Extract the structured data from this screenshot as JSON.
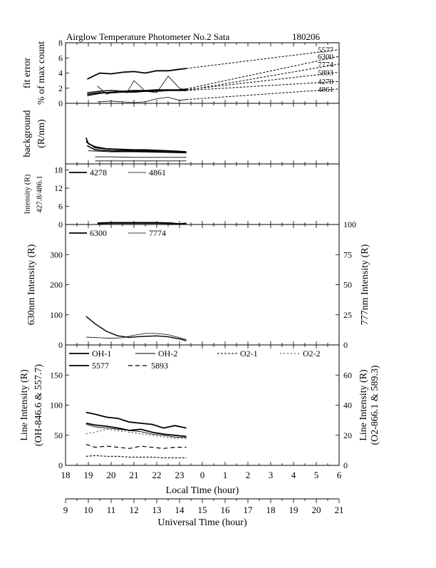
{
  "header": {
    "title": "Airglow Temperature Photometer No.2  Sata",
    "date": "180206"
  },
  "chart_data": [
    {
      "type": "line",
      "panel": "fit-error",
      "ylabel_lines": [
        "fit error",
        "% of max count"
      ],
      "ylim": [
        0,
        8
      ],
      "yticks": [
        0,
        2,
        4,
        6,
        8
      ],
      "xlim": [
        18,
        30
      ],
      "series": [
        {
          "name": "5577",
          "x": [
            18.95,
            19.5,
            20,
            20.5,
            21,
            21.5,
            22,
            22.5,
            23,
            23.3
          ],
          "y": [
            3.2,
            4.0,
            3.9,
            4.1,
            4.2,
            4.0,
            4.3,
            4.3,
            4.5,
            4.6
          ],
          "projection": {
            "x": [
              23.3,
              30
            ],
            "y": [
              4.6,
              7.1
            ]
          }
        },
        {
          "name": "6300",
          "x": [
            18.95,
            19.5,
            20,
            20.5,
            21,
            21.5,
            22,
            22.5,
            23,
            23.3
          ],
          "y": [
            1.4,
            1.6,
            1.7,
            1.6,
            1.7,
            1.7,
            1.8,
            1.8,
            1.8,
            1.9
          ],
          "projection": {
            "x": [
              23.3,
              30
            ],
            "y": [
              1.9,
              6.2
            ]
          }
        },
        {
          "name": "7774",
          "x": [
            19.4,
            19.8,
            20.2,
            20.7,
            21,
            21.5,
            22,
            22.5,
            23,
            23.3
          ],
          "y": [
            2.3,
            1.2,
            1.6,
            1.4,
            3.0,
            1.6,
            1.4,
            3.6,
            2.0,
            1.7
          ],
          "projection": {
            "x": [
              23.3,
              30
            ],
            "y": [
              1.7,
              5.2
            ]
          }
        },
        {
          "name": "5893",
          "x": [
            18.95,
            19.5,
            20,
            20.5,
            21,
            21.5,
            22,
            22.5,
            23,
            23.3
          ],
          "y": [
            1.0,
            1.3,
            1.5,
            1.5,
            1.6,
            1.6,
            1.7,
            1.7,
            1.8,
            1.8
          ],
          "projection": {
            "x": [
              23.3,
              30
            ],
            "y": [
              1.8,
              4.1
            ]
          }
        },
        {
          "name": "4278",
          "x": [
            18.95,
            19.5,
            20,
            20.5,
            21,
            21.5,
            22,
            22.5,
            23,
            23.3
          ],
          "y": [
            1.2,
            1.4,
            1.4,
            1.5,
            1.5,
            1.6,
            1.6,
            1.7,
            1.7,
            1.7
          ],
          "projection": {
            "x": [
              23.3,
              30
            ],
            "y": [
              1.7,
              2.9
            ]
          }
        },
        {
          "name": "4861",
          "x": [
            19.4,
            20,
            20.5,
            21,
            21.5,
            22,
            22.5,
            23,
            23.3
          ],
          "y": [
            0.2,
            0.3,
            0.2,
            0.1,
            0.2,
            0.6,
            0.8,
            0.4,
            0.5
          ],
          "projection": {
            "x": [
              23.3,
              30
            ],
            "y": [
              0.5,
              1.9
            ]
          }
        }
      ]
    },
    {
      "type": "line",
      "panel": "background",
      "ylabel_lines": [
        "background",
        "(R/nm)"
      ],
      "ylim": [
        0,
        60
      ],
      "xlim": [
        18,
        30
      ],
      "series": [
        {
          "x": [
            18.9,
            19.0,
            19.3,
            19.8,
            20.5,
            21,
            21.5,
            22,
            22.5,
            23,
            23.3
          ],
          "y": [
            26,
            20,
            17,
            15,
            14.5,
            14,
            14,
            13.5,
            13,
            12.5,
            12
          ]
        },
        {
          "x": [
            18.9,
            19.3,
            19.8,
            20.5,
            21,
            21.5,
            22,
            22.5,
            23,
            23.3
          ],
          "y": [
            22,
            16,
            15,
            14,
            13.5,
            13,
            13,
            12.5,
            12,
            11.5
          ]
        },
        {
          "x": [
            18.95,
            19.3,
            20,
            21,
            22,
            23,
            23.3
          ],
          "y": [
            18,
            14,
            13,
            12.5,
            12,
            11.5,
            11
          ]
        },
        {
          "x": [
            19.0,
            20,
            21,
            22,
            23,
            23.3
          ],
          "y": [
            13,
            12,
            12,
            11.5,
            11,
            11
          ]
        },
        {
          "x": [
            19.3,
            20,
            21,
            22,
            23,
            23.3
          ],
          "y": [
            7,
            7,
            6.5,
            6.5,
            6.5,
            6.5
          ]
        },
        {
          "x": [
            19.3,
            20,
            21,
            22,
            23,
            23.3
          ],
          "y": [
            3,
            3,
            3,
            3,
            3,
            3
          ]
        }
      ]
    },
    {
      "type": "line",
      "panel": "blue-lines",
      "ylabel_lines": [
        "Intensity (R)",
        "427.8/486.1"
      ],
      "ylim": [
        0,
        20
      ],
      "yticks": [
        0,
        6,
        12,
        18
      ],
      "xlim": [
        18,
        30
      ],
      "series": [
        {
          "name": "4278",
          "x": [
            19.4,
            20,
            21,
            22,
            22.6,
            23,
            23.3
          ],
          "y": [
            0.5,
            0.6,
            0.6,
            0.6,
            0.5,
            0.2,
            0.4
          ]
        },
        {
          "name": "4861",
          "x": [
            19.4,
            20,
            21,
            22,
            22.6,
            23,
            23.3
          ],
          "y": [
            0.2,
            0.3,
            0.3,
            0.3,
            0.2,
            0.0,
            0.1
          ]
        }
      ]
    },
    {
      "type": "line",
      "panel": "red-lines",
      "ylabel": "630nm Intensity (R)",
      "ylabel_right": "777nm Intensity (R)",
      "ylim": [
        0,
        400
      ],
      "yticks": [
        0,
        100,
        200,
        300
      ],
      "ylim_right": [
        0,
        100
      ],
      "yticks_right": [
        0,
        25,
        50,
        75,
        100
      ],
      "xlim": [
        18,
        30
      ],
      "series": [
        {
          "name": "6300",
          "axis": "left",
          "x": [
            18.9,
            19.3,
            19.8,
            20.3,
            20.8,
            21.3,
            22,
            22.5,
            23,
            23.3
          ],
          "y": [
            95,
            70,
            45,
            30,
            25,
            28,
            30,
            27,
            20,
            14
          ]
        },
        {
          "name": "7774",
          "axis": "right",
          "x": [
            18.9,
            19.5,
            20,
            20.5,
            21,
            21.5,
            22,
            22.5,
            23,
            23.3
          ],
          "y": [
            6.5,
            6.0,
            5.5,
            6.0,
            8.0,
            9.5,
            9.5,
            8.5,
            6.0,
            4.5
          ]
        }
      ]
    },
    {
      "type": "line",
      "panel": "line-intensity",
      "ylabel_lines": [
        "Line Intensity (R)",
        "(OH-846.6 & 557.7)"
      ],
      "ylabel_right_lines": [
        "Line Intensity (R)",
        "(O2-866.1 & 589.3)"
      ],
      "ylim": [
        0,
        200
      ],
      "yticks": [
        0,
        50,
        100,
        150
      ],
      "ylim_right": [
        0,
        80
      ],
      "yticks_right": [
        0,
        20,
        40,
        60
      ],
      "xlim": [
        18,
        30
      ],
      "series": [
        {
          "name": "OH-1",
          "axis": "left",
          "x": [
            18.9,
            19.3,
            19.8,
            20.3,
            20.8,
            21.3,
            21.8,
            22.3,
            22.8,
            23.3
          ],
          "y": [
            70,
            67,
            65,
            62,
            58,
            60,
            55,
            52,
            50,
            48
          ]
        },
        {
          "name": "OH-2",
          "axis": "left",
          "x": [
            18.9,
            19.3,
            19.8,
            20.3,
            20.8,
            21.3,
            21.8,
            22.3,
            22.8,
            23.3
          ],
          "y": [
            68,
            64,
            62,
            60,
            58,
            56,
            52,
            50,
            47,
            46
          ]
        },
        {
          "name": "O2-1",
          "axis": "right",
          "x": [
            18.9,
            19.3,
            19.8,
            20.3,
            20.8,
            21.3,
            21.8,
            22.3,
            22.8,
            23.3
          ],
          "y": [
            6,
            6.5,
            6,
            6,
            5.5,
            5.5,
            5.5,
            5,
            5,
            5
          ]
        },
        {
          "name": "O2-2",
          "axis": "right",
          "x": [
            18.9,
            19.3,
            19.8,
            20.3,
            20.8,
            21.3,
            21.8,
            22.3,
            22.8,
            23.3
          ],
          "y": [
            21,
            22,
            24,
            23,
            22,
            21,
            20,
            19,
            18,
            18
          ]
        },
        {
          "name": "5577",
          "axis": "left",
          "x": [
            18.9,
            19.3,
            19.8,
            20.3,
            20.8,
            21.3,
            21.8,
            22.3,
            22.8,
            23.3
          ],
          "y": [
            88,
            85,
            80,
            78,
            72,
            70,
            68,
            62,
            66,
            62
          ]
        },
        {
          "name": "5893",
          "axis": "left",
          "x": [
            18.9,
            19.3,
            19.8,
            20.3,
            20.8,
            21.3,
            21.8,
            22.3,
            22.8,
            23.3
          ],
          "y": [
            35,
            30,
            32,
            30,
            28,
            32,
            30,
            28,
            30,
            30
          ]
        }
      ]
    }
  ],
  "axes": {
    "local_time": {
      "label": "Local Time (hour)",
      "tick_labels": [
        "18",
        "19",
        "20",
        "21",
        "22",
        "23",
        "0",
        "1",
        "2",
        "3",
        "4",
        "5",
        "6"
      ]
    },
    "universal_time": {
      "label": "Universal Time (hour)",
      "tick_labels": [
        "9",
        "10",
        "11",
        "12",
        "13",
        "14",
        "15",
        "16",
        "17",
        "18",
        "19",
        "20",
        "21"
      ]
    }
  }
}
